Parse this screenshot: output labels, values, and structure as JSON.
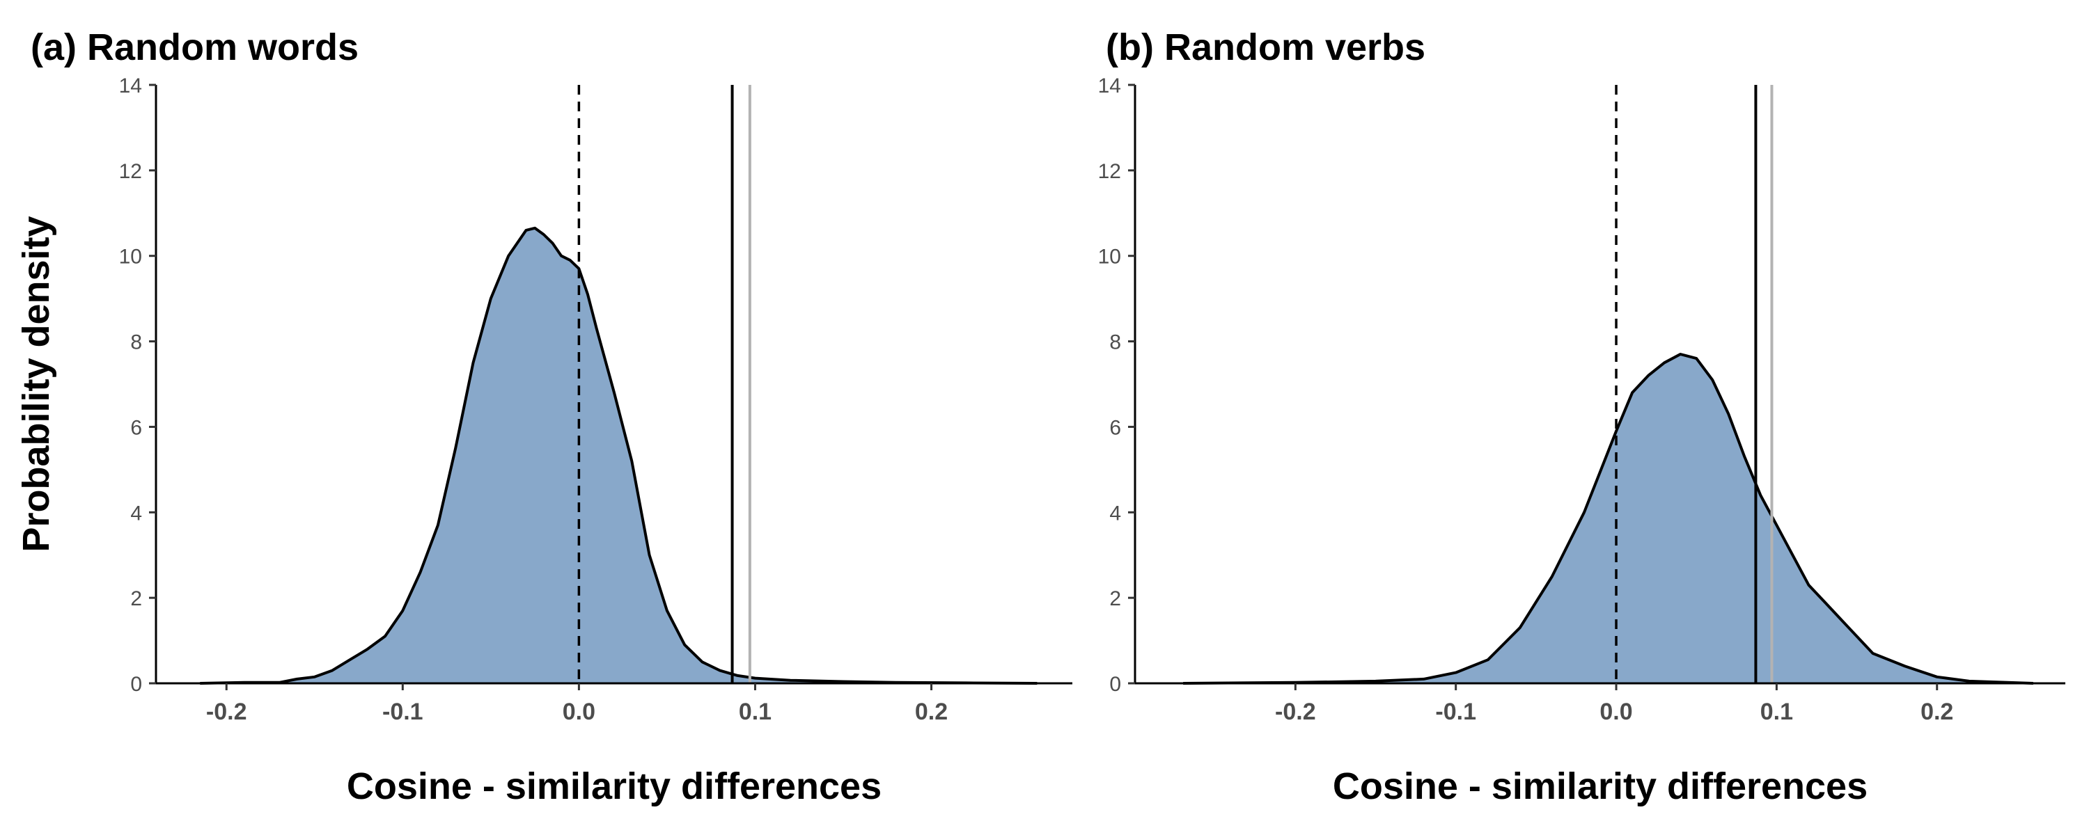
{
  "ylabel": "Probability density",
  "xlabel": "Cosine - similarity differences",
  "colors": {
    "fill": "#88a8ca",
    "outline": "#000000",
    "observed_line": "#000000",
    "reference_line": "#b3b3b3"
  },
  "chart_data": [
    {
      "type": "area",
      "title": "(a) Random words",
      "xlim": [
        -0.24,
        0.28
      ],
      "ylim": [
        0,
        14
      ],
      "xticks": [
        -0.2,
        -0.1,
        0.0,
        0.1,
        0.2
      ],
      "xtick_labels": [
        "-0.2",
        "-0.1",
        "0.0",
        "0.1",
        "0.2"
      ],
      "yticks": [
        0,
        2,
        4,
        6,
        8,
        10,
        12,
        14
      ],
      "ytick_labels": [
        "0",
        "2",
        "4",
        "6",
        "8",
        "10",
        "12",
        "14"
      ],
      "zero_line": 0.0,
      "observed_line": 0.087,
      "reference_line": 0.097,
      "density": {
        "x": [
          -0.215,
          -0.19,
          -0.17,
          -0.16,
          -0.15,
          -0.14,
          -0.13,
          -0.12,
          -0.11,
          -0.1,
          -0.09,
          -0.08,
          -0.07,
          -0.06,
          -0.05,
          -0.04,
          -0.03,
          -0.025,
          -0.02,
          -0.015,
          -0.01,
          -0.005,
          0.0,
          0.005,
          0.01,
          0.02,
          0.03,
          0.04,
          0.05,
          0.06,
          0.07,
          0.08,
          0.09,
          0.1,
          0.12,
          0.15,
          0.18,
          0.22,
          0.26
        ],
        "y": [
          0.0,
          0.02,
          0.02,
          0.1,
          0.15,
          0.3,
          0.55,
          0.8,
          1.1,
          1.7,
          2.6,
          3.7,
          5.5,
          7.5,
          9.0,
          10.0,
          10.6,
          10.65,
          10.5,
          10.3,
          10.0,
          9.9,
          9.7,
          9.1,
          8.3,
          6.8,
          5.2,
          3.0,
          1.7,
          0.9,
          0.5,
          0.3,
          0.18,
          0.12,
          0.07,
          0.04,
          0.02,
          0.01,
          0.0
        ]
      }
    },
    {
      "type": "area",
      "title": "(b) Random verbs",
      "xlim": [
        -0.3,
        0.28
      ],
      "ylim": [
        0,
        14
      ],
      "xticks": [
        -0.2,
        -0.1,
        0.0,
        0.1,
        0.2
      ],
      "xtick_labels": [
        "-0.2",
        "-0.1",
        "0.0",
        "0.1",
        "0.2"
      ],
      "yticks": [
        0,
        2,
        4,
        6,
        8,
        10,
        12,
        14
      ],
      "ytick_labels": [
        "0",
        "2",
        "4",
        "6",
        "8",
        "10",
        "12",
        "14"
      ],
      "zero_line": 0.0,
      "observed_line": 0.087,
      "reference_line": 0.097,
      "density": {
        "x": [
          -0.27,
          -0.2,
          -0.15,
          -0.12,
          -0.1,
          -0.08,
          -0.06,
          -0.04,
          -0.02,
          0.0,
          0.01,
          0.02,
          0.03,
          0.04,
          0.05,
          0.06,
          0.07,
          0.08,
          0.09,
          0.1,
          0.11,
          0.12,
          0.13,
          0.14,
          0.16,
          0.18,
          0.2,
          0.22,
          0.26
        ],
        "y": [
          0.0,
          0.02,
          0.05,
          0.1,
          0.25,
          0.55,
          1.3,
          2.5,
          4.0,
          5.9,
          6.8,
          7.2,
          7.5,
          7.7,
          7.6,
          7.1,
          6.3,
          5.3,
          4.4,
          3.7,
          3.0,
          2.3,
          1.9,
          1.5,
          0.7,
          0.4,
          0.15,
          0.05,
          0.0
        ]
      }
    }
  ]
}
